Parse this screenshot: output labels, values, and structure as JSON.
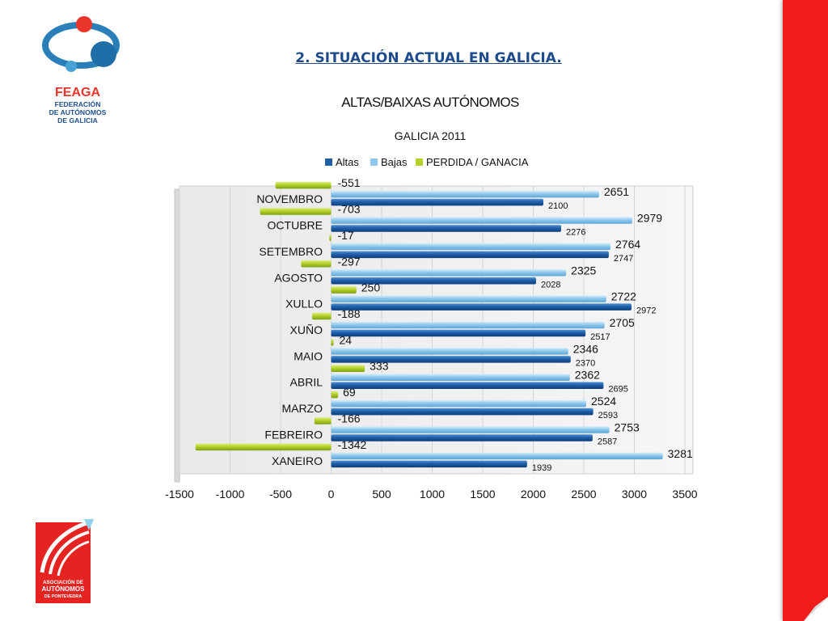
{
  "slide": {
    "title": "2. SITUACIÓN ACTUAL EN GALICIA."
  },
  "logo_top": {
    "line1": "FEAGA",
    "line2": "FEDERACIÓN",
    "line3": "DE AUTÓNOMOS",
    "line4": "DE GALICIA"
  },
  "logo_bottom": {
    "line1": "ASOCIACIÓN DE",
    "line2": "AUTÓNOMOS",
    "line3": "DE PONTEVEDRA"
  },
  "colors": {
    "altas": "#1f5fa8",
    "bajas": "#8fc8ec",
    "perdida": "#b2d12a",
    "title": "#1e4b8a",
    "sidebar": "#f01c1c"
  },
  "chart_data": {
    "type": "bar",
    "orientation": "horizontal",
    "title": "ALTAS/BAIXAS AUTÓNOMOS",
    "subtitle": "GALICIA 2011",
    "legend_position": "top",
    "categories": [
      "XANEIRO",
      "FEBREIRO",
      "MARZO",
      "ABRIL",
      "MAIO",
      "XUÑO",
      "XULLO",
      "AGOSTO",
      "SETEMBRO",
      "OCTUBRE",
      "NOVEMBRO"
    ],
    "series": [
      {
        "name": "Altas",
        "values": [
          1939,
          2587,
          2593,
          2695,
          2370,
          2517,
          2972,
          2028,
          2747,
          2276,
          2100
        ]
      },
      {
        "name": "Bajas",
        "values": [
          3281,
          2753,
          2524,
          2362,
          2346,
          2705,
          2722,
          2325,
          2764,
          2979,
          2651
        ]
      },
      {
        "name": "PERDIDA / GANACIA",
        "values": [
          -1342,
          -166,
          69,
          333,
          24,
          -188,
          250,
          -297,
          -17,
          -703,
          -551
        ]
      }
    ],
    "xlim": [
      -1500,
      3500
    ],
    "xticks": [
      "-1500",
      "-1000",
      "-500",
      "0",
      "500",
      "1000",
      "1500",
      "2000",
      "2500",
      "3000",
      "3500"
    ],
    "grid": "vertical"
  }
}
